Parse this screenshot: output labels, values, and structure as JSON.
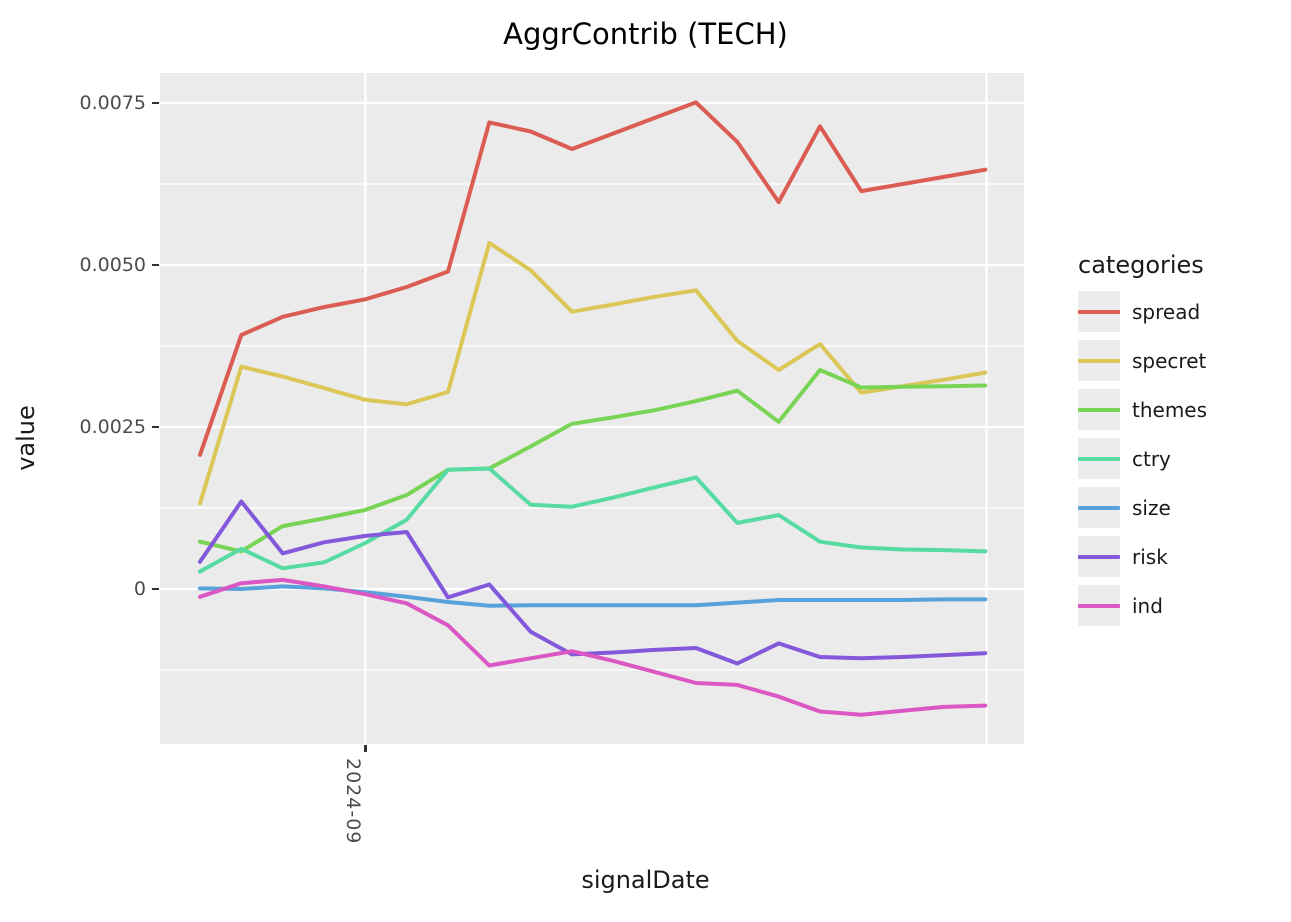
{
  "title": "AggrContrib (TECH)",
  "x_axis": {
    "label": "signalDate",
    "tick_labels": [
      "2024-09"
    ]
  },
  "y_axis": {
    "label": "value",
    "tick_labels": [
      "0.0075",
      "0.0050",
      "0.0025",
      "0"
    ]
  },
  "legend": {
    "title": "categories"
  },
  "chart_data": {
    "type": "line",
    "title": "AggrContrib (TECH)",
    "xlabel": "signalDate",
    "ylabel": "value",
    "x_note": "20 equally spaced signalDate points; only labeled axis break is 2024-09 at point 5; a second unlabeled month gridline falls at point 20",
    "x": [
      1,
      2,
      3,
      4,
      5,
      6,
      7,
      8,
      9,
      10,
      11,
      12,
      13,
      14,
      15,
      16,
      17,
      18,
      19,
      20
    ],
    "ylim": [
      -0.00239,
      0.00796
    ],
    "grid": true,
    "panel_background": "#EBEBEB",
    "gridline_color": "#FFFFFF",
    "tick_color": "#333333",
    "tick_label_color": "#4D4D4D",
    "legend_title": "categories",
    "legend_position": "right",
    "y_ticks": [
      {
        "label": "0.0075",
        "value": 0.0075
      },
      {
        "label": "0.0050",
        "value": 0.005
      },
      {
        "label": "0.0025",
        "value": 0.0025
      },
      {
        "label": "0",
        "value": 0
      }
    ],
    "y_minor": [
      0.00625,
      0.00375,
      0.00125,
      -0.00125
    ],
    "x_ticks": [
      {
        "label": "2024-09",
        "value": 5
      }
    ],
    "x_gridlines": [
      5,
      20.03
    ],
    "series": [
      {
        "name": "spread",
        "color": "#DB5C52",
        "values": [
          0.00207,
          0.00392,
          0.0042,
          0.00435,
          0.00447,
          0.00466,
          0.0049,
          0.0072,
          0.00706,
          0.00679,
          0.00703,
          0.00727,
          0.00751,
          0.0069,
          0.00597,
          0.00714,
          0.00614,
          0.00625,
          0.00636,
          0.00647
        ]
      },
      {
        "name": "specret",
        "color": "#DBC757",
        "values": [
          0.00132,
          0.00343,
          0.00328,
          0.0031,
          0.00292,
          0.00285,
          0.00304,
          0.00534,
          0.00492,
          0.00428,
          0.00439,
          0.00451,
          0.00461,
          0.00383,
          0.00338,
          0.00378,
          0.00303,
          0.00313,
          0.00323,
          0.00334
        ]
      },
      {
        "name": "themes",
        "color": "#79D455",
        "values": [
          0.00073,
          0.00058,
          0.00097,
          0.00109,
          0.00122,
          0.00145,
          0.00184,
          0.00186,
          0.0022,
          0.00255,
          0.00265,
          0.00276,
          0.0029,
          0.00306,
          0.00258,
          0.00338,
          0.00311,
          0.00312,
          0.00313,
          0.00314
        ]
      },
      {
        "name": "ctry",
        "color": "#57DBA3",
        "values": [
          0.00027,
          0.00062,
          0.00032,
          0.00041,
          0.00071,
          0.00107,
          0.00184,
          0.00186,
          0.0013,
          0.00127,
          0.00141,
          0.00157,
          0.00172,
          0.00102,
          0.00114,
          0.00073,
          0.00064,
          0.00061,
          0.0006,
          0.00058
        ]
      },
      {
        "name": "size",
        "color": "#57A2DB",
        "values": [
          1e-05,
          0.0,
          4e-05,
          1e-05,
          -5e-05,
          -0.00012,
          -0.0002,
          -0.00026,
          -0.00025,
          -0.00025,
          -0.00025,
          -0.00025,
          -0.00025,
          -0.00021,
          -0.00017,
          -0.00017,
          -0.00017,
          -0.00017,
          -0.00016,
          -0.00016
        ]
      },
      {
        "name": "risk",
        "color": "#8458DB",
        "values": [
          0.00042,
          0.00135,
          0.00055,
          0.00072,
          0.00082,
          0.00088,
          -0.00013,
          7e-05,
          -0.00066,
          -0.00101,
          -0.00098,
          -0.00094,
          -0.00091,
          -0.00115,
          -0.00084,
          -0.00105,
          -0.00107,
          -0.00105,
          -0.00102,
          -0.00099
        ]
      },
      {
        "name": "ind",
        "color": "#DB57C4",
        "values": [
          -0.00012,
          9e-05,
          0.00014,
          4e-05,
          -8e-05,
          -0.00022,
          -0.00056,
          -0.00118,
          -0.00107,
          -0.00096,
          -0.00111,
          -0.00128,
          -0.00145,
          -0.00148,
          -0.00166,
          -0.00189,
          -0.00194,
          -0.00188,
          -0.00182,
          -0.0018
        ]
      }
    ]
  }
}
